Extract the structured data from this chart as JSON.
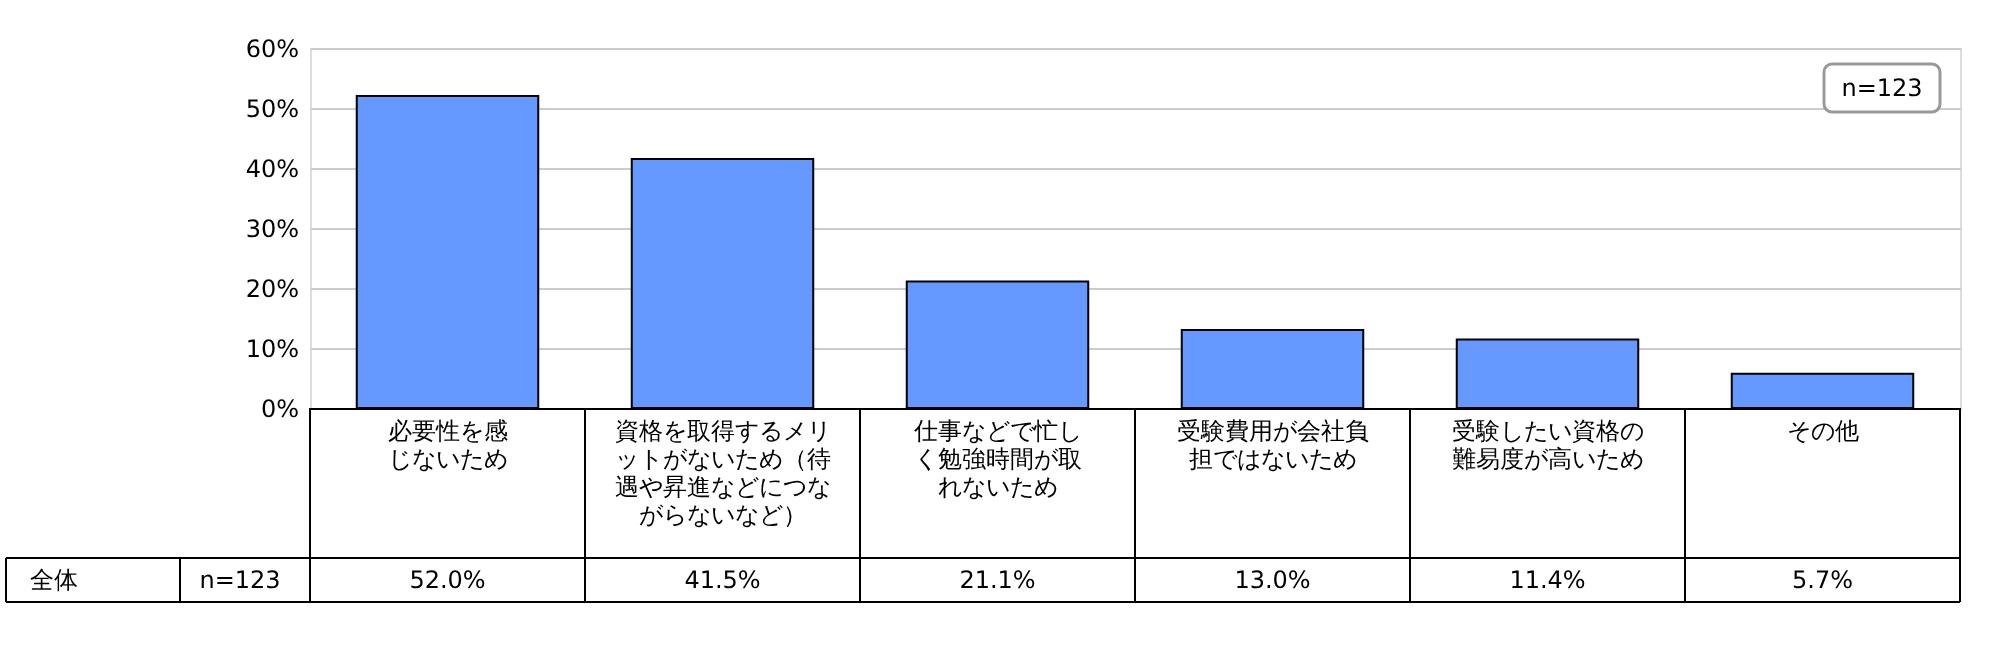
{
  "chart_data": {
    "type": "bar",
    "categories": [
      "必要性を感じないため",
      "資格を取得するメリットがないため（待遇や昇進などにつながらないなど）",
      "仕事などで忙しく勉強時間が取れないため",
      "受験費用が会社負担ではないため",
      "受験したい資格の難易度が高いため",
      "その他"
    ],
    "values": [
      52.0,
      41.5,
      21.1,
      13.0,
      11.4,
      5.7
    ],
    "value_labels": [
      "52.0%",
      "41.5%",
      "21.1%",
      "13.0%",
      "11.4%",
      "5.7%"
    ],
    "color": "#6699ff",
    "ylim": [
      0,
      60
    ],
    "yticks": [
      {
        "value": 0,
        "label": "0%"
      },
      {
        "value": 10,
        "label": "10%"
      },
      {
        "value": 20,
        "label": "20%"
      },
      {
        "value": 30,
        "label": "30%"
      },
      {
        "value": 40,
        "label": "40%"
      },
      {
        "value": 50,
        "label": "50%"
      },
      {
        "value": 60,
        "label": "60%"
      }
    ],
    "grid": "y",
    "annotations": [
      "n=123",
      "全体",
      "n=123"
    ]
  }
}
